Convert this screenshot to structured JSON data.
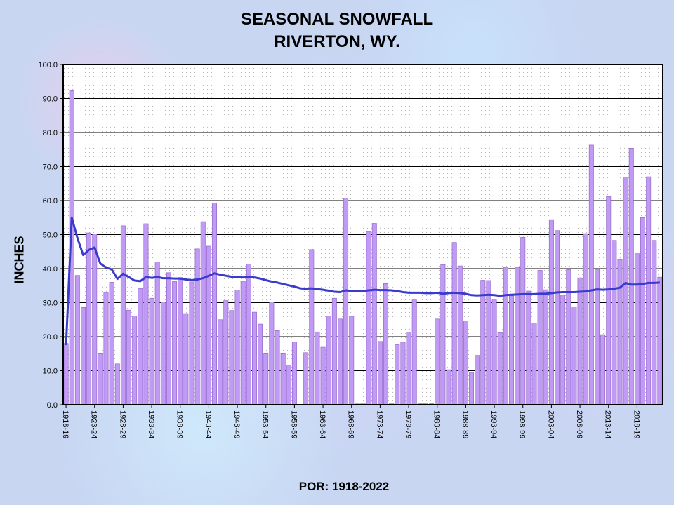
{
  "chart_data": {
    "type": "bar",
    "title": "SEASONAL SNOWFALL",
    "subtitle": "RIVERTON, WY.",
    "ylabel": "INCHES",
    "footer": "POR: 1918-2022",
    "ylim": [
      0,
      100
    ],
    "yticks": [
      "0.0",
      "10.0",
      "20.0",
      "30.0",
      "40.0",
      "50.0",
      "60.0",
      "70.0",
      "80.0",
      "90.0",
      "100.0"
    ],
    "xticks": [
      "1918-19",
      "1923-24",
      "1928-29",
      "1933-34",
      "1938-39",
      "1943-44",
      "1948-49",
      "1953-54",
      "1958-59",
      "1963-64",
      "1968-69",
      "1973-74",
      "1978-79",
      "1983-84",
      "1988-89",
      "1993-94",
      "1998-99",
      "2003-04",
      "2008-09",
      "2013-14",
      "2018-19"
    ],
    "grid": true,
    "bar_color": "#c09af5",
    "bar_edge_color": "#8a5fc4",
    "line_color": "#3a3acc",
    "series": [
      {
        "type": "bar",
        "values": [
          18.0,
          92.3,
          38.0,
          28.6,
          50.5,
          50.2,
          15.2,
          33.0,
          36.0,
          12.0,
          52.6,
          27.8,
          26.1,
          34.2,
          53.2,
          31.3,
          42.0,
          30.2,
          38.8,
          36.2,
          37.4,
          26.8,
          36.1,
          45.8,
          53.8,
          46.6,
          59.3,
          25.0,
          30.6,
          27.7,
          33.7,
          36.3,
          41.3,
          27.2,
          23.7,
          15.2,
          30.2,
          21.8,
          15.2,
          11.7,
          18.4,
          0.0,
          15.3,
          45.6,
          21.4,
          16.9,
          26.1,
          31.3,
          25.2,
          60.7,
          26.0,
          0.5,
          0.5,
          50.9,
          53.3,
          18.6,
          35.6,
          0.5,
          17.7,
          18.4,
          21.3,
          30.8,
          0.3,
          0.3,
          0.3,
          25.2,
          41.2,
          10.3,
          47.7,
          40.8,
          24.6,
          9.5,
          14.5,
          36.6,
          36.5,
          30.8,
          21.2,
          40.3,
          32.0,
          40.4,
          49.2,
          33.4,
          24.0,
          39.5,
          33.8,
          54.4,
          51.2,
          32.2,
          39.7,
          28.8,
          37.3,
          50.3,
          76.3,
          39.8,
          20.6,
          61.2,
          48.3,
          42.8,
          66.9,
          75.4,
          44.4,
          55.0,
          67.0,
          48.3,
          37.5
        ]
      },
      {
        "type": "line",
        "name": "average",
        "values": [
          17.5,
          55.0,
          49.0,
          44.0,
          45.5,
          46.2,
          41.5,
          40.3,
          39.8,
          37.0,
          38.5,
          37.5,
          36.5,
          36.3,
          37.5,
          37.3,
          37.5,
          37.2,
          37.2,
          37.1,
          37.1,
          36.8,
          36.6,
          36.8,
          37.2,
          37.9,
          38.6,
          38.2,
          37.9,
          37.6,
          37.5,
          37.4,
          37.5,
          37.4,
          37.1,
          36.6,
          36.2,
          35.9,
          35.5,
          35.1,
          34.7,
          34.2,
          34.1,
          34.2,
          34.0,
          33.8,
          33.5,
          33.2,
          33.1,
          33.6,
          33.4,
          33.3,
          33.4,
          33.6,
          33.8,
          33.7,
          33.7,
          33.6,
          33.4,
          33.1,
          32.9,
          32.9,
          32.9,
          32.8,
          32.8,
          32.9,
          32.6,
          32.8,
          32.9,
          32.8,
          32.6,
          32.2,
          32.1,
          32.2,
          32.3,
          32.2,
          32.0,
          32.2,
          32.3,
          32.4,
          32.5,
          32.5,
          32.5,
          32.6,
          32.6,
          32.8,
          33.0,
          33.1,
          33.1,
          33.1,
          33.2,
          33.3,
          33.6,
          33.9,
          33.8,
          33.9,
          34.1,
          34.4,
          35.8,
          35.3,
          35.3,
          35.5,
          35.8,
          35.8,
          35.9
        ]
      }
    ]
  }
}
